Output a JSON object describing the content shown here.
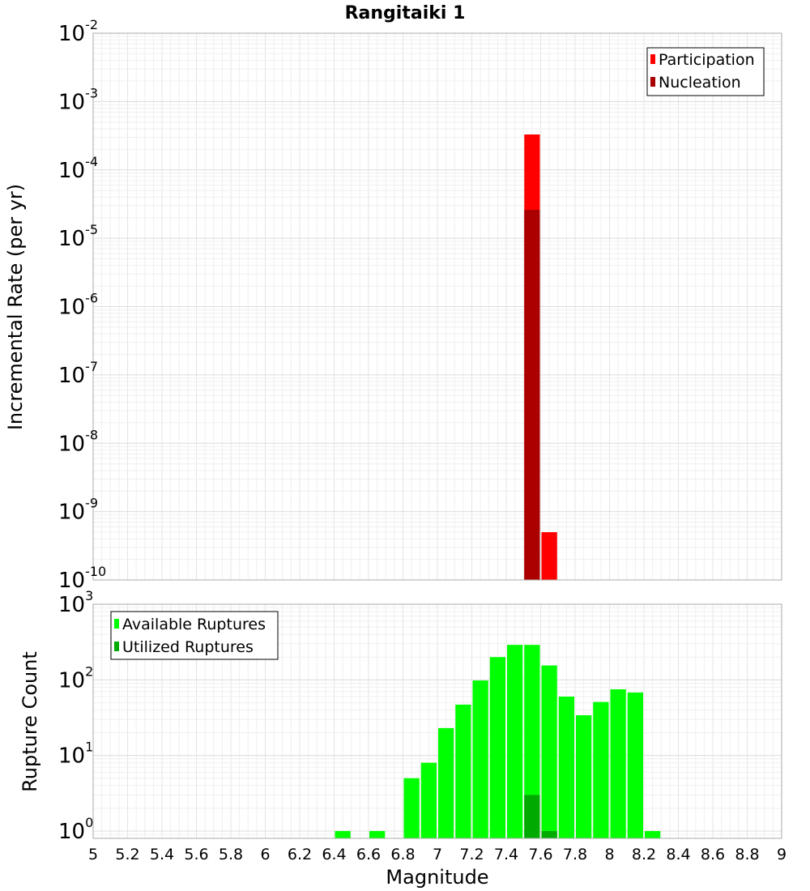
{
  "chart_data": [
    {
      "type": "bar",
      "title": "Rangitaiki 1",
      "xlabel": "",
      "ylabel": "Incremental Rate (per yr)",
      "yscale": "log",
      "ylim": [
        1e-10,
        0.01
      ],
      "xlim": [
        5,
        9
      ],
      "grid": true,
      "legend_position": "top-right",
      "bin_width": 0.1,
      "ytick_labels": [
        {
          "base": "10",
          "exp": "-10"
        },
        {
          "base": "10",
          "exp": "-9"
        },
        {
          "base": "10",
          "exp": "-8"
        },
        {
          "base": "10",
          "exp": "-7"
        },
        {
          "base": "10",
          "exp": "-6"
        },
        {
          "base": "10",
          "exp": "-5"
        },
        {
          "base": "10",
          "exp": "-4"
        },
        {
          "base": "10",
          "exp": "-3"
        },
        {
          "base": "10",
          "exp": "-2"
        }
      ],
      "series": [
        {
          "name": "Participation",
          "color": "#ff0000",
          "x": [
            7.55,
            7.65
          ],
          "values": [
            0.00033,
            5e-10
          ]
        },
        {
          "name": "Nucleation",
          "color": "#aa0000",
          "x": [
            7.55
          ],
          "values": [
            2.6e-05
          ]
        }
      ]
    },
    {
      "type": "bar",
      "title": "",
      "xlabel": "Magnitude",
      "ylabel": "Rupture Count",
      "yscale": "log",
      "ylim": [
        0.8,
        1000
      ],
      "xlim": [
        5,
        9
      ],
      "grid": true,
      "legend_position": "top-left",
      "bin_width": 0.1,
      "xticks": [
        "5",
        "5.2",
        "5.4",
        "5.6",
        "5.8",
        "6",
        "6.2",
        "6.4",
        "6.6",
        "6.8",
        "7",
        "7.2",
        "7.4",
        "7.6",
        "7.8",
        "8",
        "8.2",
        "8.4",
        "8.6",
        "8.8",
        "9"
      ],
      "ytick_labels": [
        {
          "base": "10",
          "exp": "0"
        },
        {
          "base": "10",
          "exp": "1"
        },
        {
          "base": "10",
          "exp": "2"
        },
        {
          "base": "10",
          "exp": "3"
        }
      ],
      "series": [
        {
          "name": "Available Ruptures",
          "color": "#00ff00",
          "x": [
            6.45,
            6.65,
            6.85,
            6.95,
            7.05,
            7.15,
            7.25,
            7.35,
            7.45,
            7.55,
            7.65,
            7.75,
            7.85,
            7.95,
            8.05,
            8.15,
            8.25
          ],
          "values": [
            1,
            1,
            5,
            8,
            23,
            47,
            98,
            200,
            290,
            290,
            155,
            60,
            34,
            51,
            75,
            68,
            1
          ]
        },
        {
          "name": "Utilized Ruptures",
          "color": "#00aa00",
          "x": [
            7.55,
            7.65
          ],
          "values": [
            3,
            1
          ]
        }
      ]
    }
  ]
}
